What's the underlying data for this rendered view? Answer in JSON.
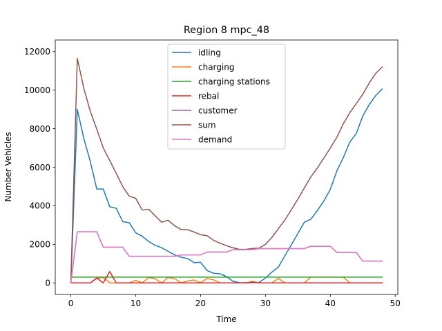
{
  "chart_data": {
    "type": "line",
    "title": "Region 8 mpc_48",
    "xlabel": "Time",
    "ylabel": "Number Vehicles",
    "xlim": [
      -2.4,
      50.4
    ],
    "ylim": [
      -600,
      12600
    ],
    "xticks": [
      0,
      10,
      20,
      30,
      40,
      50
    ],
    "yticks": [
      0,
      2000,
      4000,
      6000,
      8000,
      10000,
      12000
    ],
    "grid": false,
    "legend_position": "top-center",
    "x": [
      0,
      1,
      2,
      3,
      4,
      5,
      6,
      7,
      8,
      9,
      10,
      11,
      12,
      13,
      14,
      15,
      16,
      17,
      18,
      19,
      20,
      21,
      22,
      23,
      24,
      25,
      26,
      27,
      28,
      29,
      30,
      31,
      32,
      33,
      34,
      35,
      36,
      37,
      38,
      39,
      40,
      41,
      42,
      43,
      44,
      45,
      46,
      47,
      48
    ],
    "series": [
      {
        "name": "idling",
        "color": "#1f77b4",
        "values": [
          0,
          9000,
          7500,
          6300,
          4870,
          4870,
          3950,
          3870,
          3180,
          3120,
          2600,
          2420,
          2150,
          1950,
          1820,
          1640,
          1450,
          1330,
          1260,
          1050,
          1070,
          640,
          500,
          470,
          330,
          80,
          10,
          10,
          10,
          20,
          250,
          560,
          820,
          1410,
          1980,
          2560,
          3150,
          3300,
          3750,
          4250,
          4850,
          5800,
          6500,
          7300,
          7750,
          8650,
          9250,
          9720,
          10060
        ]
      },
      {
        "name": "charging",
        "color": "#ff7f0e",
        "values": [
          0,
          0,
          0,
          0,
          230,
          280,
          0,
          0,
          0,
          0,
          130,
          0,
          280,
          220,
          0,
          280,
          220,
          0,
          100,
          150,
          0,
          230,
          160,
          0,
          0,
          0,
          0,
          0,
          80,
          0,
          0,
          0,
          230,
          0,
          0,
          0,
          0,
          300,
          300,
          300,
          300,
          300,
          300,
          0,
          0,
          0,
          0,
          0,
          0
        ]
      },
      {
        "name": "charging stations",
        "color": "#2ca02c",
        "values": [
          300,
          300,
          300,
          300,
          300,
          300,
          300,
          300,
          300,
          300,
          300,
          300,
          300,
          300,
          300,
          300,
          300,
          300,
          300,
          300,
          300,
          300,
          300,
          300,
          300,
          300,
          300,
          300,
          300,
          300,
          300,
          300,
          300,
          300,
          300,
          300,
          300,
          300,
          300,
          300,
          300,
          300,
          300,
          300,
          300,
          300,
          300,
          300,
          300
        ]
      },
      {
        "name": "rebal",
        "color": "#d62728",
        "values": [
          0,
          0,
          0,
          0,
          250,
          0,
          590,
          0,
          0,
          0,
          0,
          0,
          0,
          0,
          0,
          0,
          0,
          0,
          0,
          0,
          0,
          0,
          0,
          0,
          0,
          0,
          0,
          0,
          40,
          0,
          0,
          0,
          0,
          0,
          0,
          0,
          0,
          0,
          0,
          0,
          0,
          0,
          0,
          0,
          0,
          0,
          0,
          0,
          0
        ]
      },
      {
        "name": "customer",
        "color": "#9467bd",
        "values": [
          0,
          2650,
          2650,
          2650,
          2650,
          1850,
          1850,
          1850,
          1850,
          1380,
          1380,
          1380,
          1380,
          1380,
          1380,
          1380,
          1380,
          1450,
          1450,
          1450,
          1450,
          1600,
          1600,
          1600,
          1600,
          1720,
          1720,
          1720,
          1720,
          1780,
          1780,
          1780,
          1780,
          1780,
          1780,
          1780,
          1780,
          1900,
          1900,
          1900,
          1900,
          1580,
          1580,
          1580,
          1580,
          1130,
          1130,
          1130,
          1130
        ]
      },
      {
        "name": "sum",
        "color": "#8c564b",
        "values": [
          0,
          11650,
          10100,
          8900,
          7970,
          7000,
          6350,
          5680,
          5000,
          4500,
          4390,
          3780,
          3820,
          3480,
          3150,
          3250,
          2960,
          2770,
          2760,
          2640,
          2500,
          2450,
          2210,
          2060,
          1930,
          1820,
          1740,
          1740,
          1790,
          1800,
          2000,
          2360,
          2820,
          3260,
          3800,
          4340,
          4930,
          5500,
          5960,
          6470,
          7000,
          7550,
          8250,
          8830,
          9300,
          9780,
          10370,
          10870,
          11200
        ]
      },
      {
        "name": "demand",
        "color": "#e377c2",
        "values": [
          0,
          2650,
          2650,
          2650,
          2650,
          1850,
          1850,
          1850,
          1850,
          1380,
          1380,
          1380,
          1380,
          1380,
          1380,
          1380,
          1380,
          1450,
          1450,
          1450,
          1450,
          1600,
          1600,
          1600,
          1600,
          1720,
          1720,
          1720,
          1720,
          1780,
          1780,
          1780,
          1780,
          1780,
          1780,
          1780,
          1780,
          1900,
          1900,
          1900,
          1900,
          1580,
          1580,
          1580,
          1580,
          1130,
          1130,
          1130,
          1130
        ]
      }
    ]
  }
}
